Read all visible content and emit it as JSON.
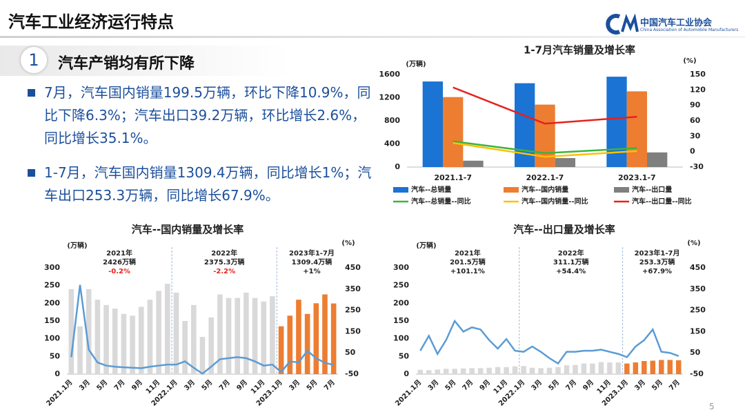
{
  "header": {
    "title": "汽车工业经济运行特点",
    "logo_name": "中国汽车工业协会",
    "logo_subtitle": "China Association of Automobile Manufacturers"
  },
  "section": {
    "number": "1",
    "title": "汽车产销均有所下降"
  },
  "bullets": [
    "7月，汽车国内销量199.5万辆，环比下降10.9%，同比下降6.3%；汽车出口39.2万辆，环比增长2.6%，同比增长35.1%。",
    "1-7月，汽车国内销量1309.4万辆，同比增长1%；汽车出口253.3万辆，同比增长67.9%。"
  ],
  "page_number": "5",
  "chart_data": [
    {
      "type": "combo",
      "title": "1-7月汽车销量及增长率",
      "y_unit": "(万辆)",
      "y2_unit": "(%)",
      "bar_mode": "grouped",
      "grid": false,
      "categories": [
        "2021.1-7",
        "2022.1-7",
        "2023.1-7"
      ],
      "ylim": [
        0,
        1600
      ],
      "yticks": [
        0,
        400,
        800,
        1200,
        1600
      ],
      "y2lim": [
        -30,
        150
      ],
      "y2ticks": [
        -30,
        0,
        30,
        60,
        90,
        120,
        150
      ],
      "series": [
        {
          "name": "汽车--总销量",
          "type": "bar",
          "color": "#1b73d3",
          "values": [
            1480,
            1450,
            1563
          ]
        },
        {
          "name": "汽车--国内销量",
          "type": "bar",
          "color": "#ed7d31",
          "values": [
            1210,
            1080,
            1309.4
          ]
        },
        {
          "name": "汽车--出口量",
          "type": "bar",
          "color": "#7f7f7f",
          "values": [
            110,
            155,
            253.3
          ]
        },
        {
          "name": "汽车--总销量--同比",
          "type": "line",
          "axis": "y2",
          "color": "#3cb43c",
          "values": [
            20,
            -3,
            7
          ]
        },
        {
          "name": "汽车--国内销量--同比",
          "type": "line",
          "axis": "y2",
          "color": "#ffc000",
          "values": [
            17,
            -10,
            1
          ]
        },
        {
          "name": "汽车--出口量--同比",
          "type": "line",
          "axis": "y2",
          "color": "#e8201c",
          "values": [
            125,
            54.4,
            67.9
          ]
        }
      ]
    },
    {
      "type": "combo",
      "title": "汽车--国内销量及增长率",
      "y_unit": "(万辆)",
      "y2_unit": "(%)",
      "bar_mode": "overlay",
      "grid": false,
      "categories": [
        "2021.1月",
        null,
        "3月",
        null,
        "5月",
        null,
        "7月",
        null,
        "9月",
        null,
        "11月",
        null,
        "2022.1月",
        null,
        "3月",
        null,
        "5月",
        null,
        "7月",
        null,
        "9月",
        null,
        "11月",
        null,
        "2023.1月",
        null,
        "3月",
        null,
        "5月",
        null,
        "7月"
      ],
      "ylim": [
        0,
        300
      ],
      "yticks": [
        0,
        50,
        100,
        150,
        200,
        250,
        300
      ],
      "y2lim": [
        -50,
        450
      ],
      "y2ticks": [
        -50,
        50,
        150,
        250,
        350,
        450
      ],
      "series": [
        {
          "type": "bar",
          "color": "#d9d9d9",
          "values": [
            240,
            135,
            240,
            210,
            195,
            185,
            170,
            165,
            190,
            210,
            235,
            255,
            230,
            150,
            195,
            105,
            160,
            225,
            215,
            215,
            230,
            215,
            205,
            220,
            null,
            null,
            null,
            null,
            null,
            null,
            null
          ]
        },
        {
          "type": "bar",
          "color": "#ed7d31",
          "values": [
            null,
            null,
            null,
            null,
            null,
            null,
            null,
            null,
            null,
            null,
            null,
            null,
            null,
            null,
            null,
            null,
            null,
            null,
            null,
            null,
            null,
            null,
            null,
            null,
            135,
            165,
            210,
            170,
            200,
            225,
            199.5
          ]
        },
        {
          "type": "line",
          "axis": "y2",
          "color": "#5b9bd5",
          "values": [
            30,
            370,
            65,
            5,
            -10,
            -15,
            -18,
            -20,
            -22,
            -15,
            -10,
            -5,
            -5,
            10,
            -20,
            -48,
            -15,
            20,
            25,
            30,
            25,
            10,
            -10,
            -5,
            -40,
            10,
            5,
            60,
            25,
            3,
            -6.3
          ]
        }
      ],
      "annotations": [
        {
          "period": "2021年",
          "volume": "2426万辆",
          "change": "-0.2%",
          "change_color": "#e8201c"
        },
        {
          "period": "2022年",
          "volume": "2375.3万辆",
          "change": "-2.2%",
          "change_color": "#e8201c"
        },
        {
          "period": "2023年1-7月",
          "volume": "1309.4万辆",
          "change": "+1%",
          "change_color": "#222222"
        }
      ]
    },
    {
      "type": "combo",
      "title": "汽车--出口量及增长率",
      "y_unit": "(万辆)",
      "y2_unit": "(%)",
      "bar_mode": "overlay",
      "grid": false,
      "categories": [
        "2021.1月",
        null,
        "3月",
        null,
        "5月",
        null,
        "7月",
        null,
        "9月",
        null,
        "11月",
        null,
        "2022.1月",
        null,
        "3月",
        null,
        "5月",
        null,
        "7月",
        null,
        "9月",
        null,
        "11月",
        null,
        "2023.1月",
        null,
        "3月",
        null,
        "5月",
        null,
        "7月"
      ],
      "ylim": [
        0,
        300
      ],
      "yticks": [
        0,
        50,
        100,
        150,
        200,
        250,
        300
      ],
      "y2lim": [
        -50,
        450
      ],
      "y2ticks": [
        -50,
        50,
        150,
        250,
        350,
        450
      ],
      "series": [
        {
          "type": "bar",
          "color": "#d9d9d9",
          "values": [
            12,
            11,
            13,
            15,
            15,
            16,
            17,
            17,
            18,
            20,
            20,
            22,
            23,
            18,
            17,
            18,
            20,
            25,
            26,
            30,
            30,
            34,
            33,
            33,
            null,
            null,
            null,
            null,
            null,
            null,
            null
          ]
        },
        {
          "type": "bar",
          "color": "#ed7d31",
          "values": [
            null,
            null,
            null,
            null,
            null,
            null,
            null,
            null,
            null,
            null,
            null,
            null,
            null,
            null,
            null,
            null,
            null,
            null,
            null,
            null,
            null,
            null,
            null,
            null,
            30,
            33,
            37,
            38,
            40,
            40,
            39.2
          ]
        },
        {
          "type": "line",
          "axis": "y2",
          "color": "#5b9bd5",
          "values": [
            60,
            130,
            45,
            110,
            200,
            150,
            170,
            160,
            110,
            70,
            115,
            60,
            55,
            80,
            55,
            25,
            0,
            55,
            55,
            60,
            60,
            65,
            55,
            45,
            30,
            80,
            110,
            160,
            55,
            50,
            35.1
          ]
        }
      ],
      "annotations": [
        {
          "period": "2021年",
          "volume": "201.5万辆",
          "change": "+101.1%",
          "change_color": "#222222"
        },
        {
          "period": "2022年",
          "volume": "311.1万辆",
          "change": "+54.4%",
          "change_color": "#222222"
        },
        {
          "period": "2023年1-7月",
          "volume": "253.3万辆",
          "change": "+67.9%",
          "change_color": "#222222"
        }
      ]
    }
  ]
}
